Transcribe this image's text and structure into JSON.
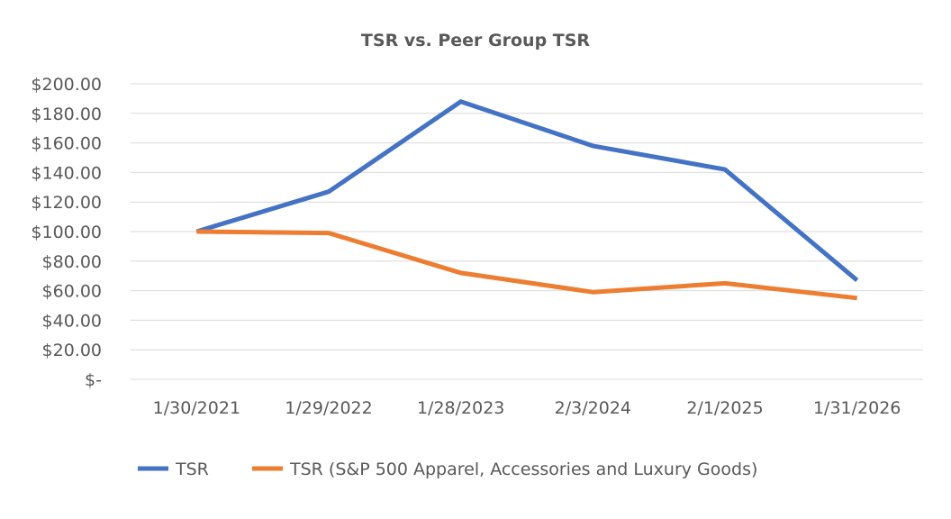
{
  "chart_data": {
    "type": "line",
    "title": "TSR vs. Peer Group TSR",
    "categories": [
      "1/30/2021",
      "1/29/2022",
      "1/28/2023",
      "2/3/2024",
      "2/1/2025",
      "1/31/2026"
    ],
    "y_ticks": [
      "$-",
      "$20.00",
      "$40.00",
      "$60.00",
      "$80.00",
      "$100.00",
      "$120.00",
      "$140.00",
      "$160.00",
      "$180.00",
      "$200.00"
    ],
    "ylim": [
      0,
      200
    ],
    "grid": true,
    "legend_position": "bottom",
    "series": [
      {
        "name": "TSR",
        "color": "#4472c4",
        "values": [
          100,
          127,
          188,
          158,
          142,
          67
        ]
      },
      {
        "name": "TSR (S&P 500 Apparel, Accessories and Luxury Goods)",
        "color": "#ed7d31",
        "values": [
          100,
          99,
          72,
          59,
          65,
          55
        ]
      }
    ]
  }
}
